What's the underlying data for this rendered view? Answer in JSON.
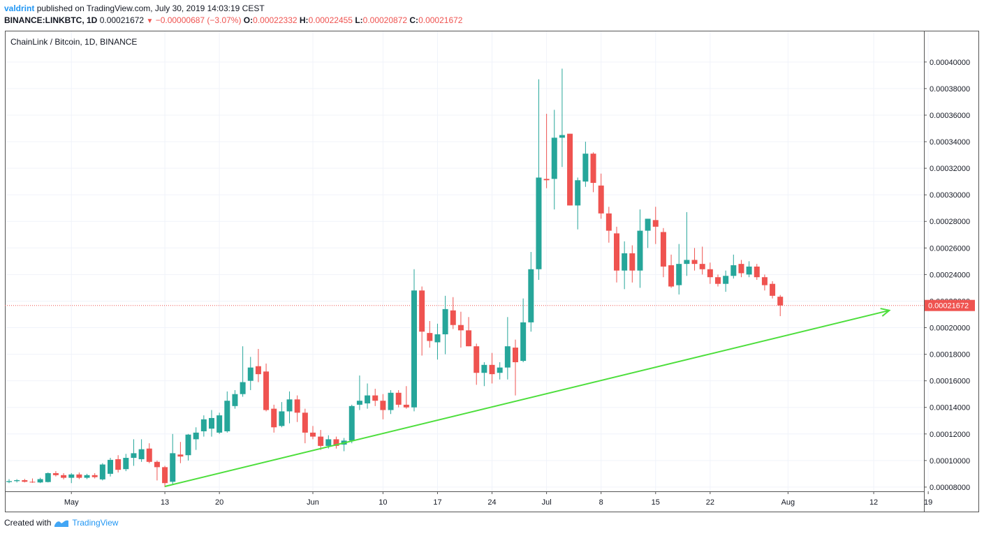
{
  "header": {
    "author": "valdrint",
    "published_text": "published on TradingView.com, July 30, 2019 14:03:19 CEST",
    "symbol": "BINANCE:LINKBTC, 1D",
    "last": "0.00021672",
    "change": "−0.00000687 (−3.07%)",
    "o_label": "O:",
    "o_value": "0.00022332",
    "h_label": "H:",
    "h_value": "0.00022455",
    "l_label": "L:",
    "l_value": "0.00020872",
    "c_label": "C:",
    "c_value": "0.00021672"
  },
  "legend": "ChainLink / Bitcoin, 1D, BINANCE",
  "footer": {
    "created_with": "Created with",
    "brand": "TradingView",
    "icon": "tradingview-logo-icon"
  },
  "colors": {
    "up": "#26a69a",
    "down": "#ef5350",
    "trendline": "#4cde3b",
    "grid": "#f0f3fa",
    "price_line": "#ef5350"
  },
  "chart_data": {
    "type": "candlestick",
    "interval": "1D",
    "y_axis": {
      "position": "right",
      "min": 7.05e-05,
      "max": 0.000412,
      "ticks": [
        "0.00008000",
        "0.00010000",
        "0.00012000",
        "0.00014000",
        "0.00016000",
        "0.00018000",
        "0.00020000",
        "0.00022000",
        "0.00024000",
        "0.00026000",
        "0.00028000",
        "0.00030000",
        "0.00032000",
        "0.00034000",
        "0.00036000",
        "0.00038000",
        "0.00040000"
      ]
    },
    "x_axis": {
      "start": "2019-04-23",
      "end": "2019-08-18",
      "ticks": [
        {
          "date": "2019-05-01",
          "label": "May"
        },
        {
          "date": "2019-05-13",
          "label": "13"
        },
        {
          "date": "2019-05-20",
          "label": "20"
        },
        {
          "date": "2019-06-01",
          "label": "Jun"
        },
        {
          "date": "2019-06-10",
          "label": "10"
        },
        {
          "date": "2019-06-17",
          "label": "17"
        },
        {
          "date": "2019-06-24",
          "label": "24"
        },
        {
          "date": "2019-07-01",
          "label": "Jul"
        },
        {
          "date": "2019-07-08",
          "label": "8"
        },
        {
          "date": "2019-07-15",
          "label": "15"
        },
        {
          "date": "2019-07-22",
          "label": "22"
        },
        {
          "date": "2019-08-01",
          "label": "Aug"
        },
        {
          "date": "2019-08-12",
          "label": "12"
        },
        {
          "date": "2019-08-19",
          "label": "19"
        }
      ]
    },
    "last_price": {
      "value": 0.00021672,
      "label": "0.00021672"
    },
    "trendline": {
      "start": {
        "date": "2019-05-13",
        "value": 8.05e-05
      },
      "end": {
        "date": "2019-08-14",
        "value": 0.000213
      }
    },
    "candles": [
      {
        "date": "2019-04-23",
        "o": 8.38e-05,
        "h": 8.6e-05,
        "l": 8.3e-05,
        "c": 8.45e-05
      },
      {
        "date": "2019-04-24",
        "o": 8.45e-05,
        "h": 8.6e-05,
        "l": 8.35e-05,
        "c": 8.52e-05
      },
      {
        "date": "2019-04-25",
        "o": 8.52e-05,
        "h": 8.62e-05,
        "l": 8.35e-05,
        "c": 8.4e-05
      },
      {
        "date": "2019-04-26",
        "o": 8.4e-05,
        "h": 8.65e-05,
        "l": 8.32e-05,
        "c": 8.35e-05
      },
      {
        "date": "2019-04-27",
        "o": 8.35e-05,
        "h": 8.7e-05,
        "l": 8.3e-05,
        "c": 8.6e-05
      },
      {
        "date": "2019-04-28",
        "o": 8.38e-05,
        "h": 9.1e-05,
        "l": 8.35e-05,
        "c": 9.05e-05
      },
      {
        "date": "2019-04-29",
        "o": 9.05e-05,
        "h": 9.2e-05,
        "l": 8.8e-05,
        "c": 8.9e-05
      },
      {
        "date": "2019-04-30",
        "o": 8.9e-05,
        "h": 9.05e-05,
        "l": 8.58e-05,
        "c": 8.7e-05
      },
      {
        "date": "2019-05-01",
        "o": 8.7e-05,
        "h": 9.05e-05,
        "l": 8.3e-05,
        "c": 8.95e-05
      },
      {
        "date": "2019-05-02",
        "o": 8.95e-05,
        "h": 9.1e-05,
        "l": 8.6e-05,
        "c": 8.7e-05
      },
      {
        "date": "2019-05-03",
        "o": 8.7e-05,
        "h": 9e-05,
        "l": 8.6e-05,
        "c": 8.9e-05
      },
      {
        "date": "2019-05-04",
        "o": 8.9e-05,
        "h": 9.05e-05,
        "l": 8.65e-05,
        "c": 8.75e-05
      },
      {
        "date": "2019-05-05",
        "o": 8.58e-05,
        "h": 9.8e-05,
        "l": 8.5e-05,
        "c": 9.7e-05
      },
      {
        "date": "2019-05-06",
        "o": 9e-05,
        "h": 0.000102,
        "l": 8.8e-05,
        "c": 0.0001005
      },
      {
        "date": "2019-05-07",
        "o": 0.000101,
        "h": 0.000104,
        "l": 9.1e-05,
        "c": 9.3e-05
      },
      {
        "date": "2019-05-08",
        "o": 9.35e-05,
        "h": 0.000105,
        "l": 9.2e-05,
        "c": 0.000102
      },
      {
        "date": "2019-05-09",
        "o": 0.000102,
        "h": 0.000116,
        "l": 9.6e-05,
        "c": 0.0001055
      },
      {
        "date": "2019-05-10",
        "o": 0.000101,
        "h": 0.000116,
        "l": 9.9e-05,
        "c": 0.0001085
      },
      {
        "date": "2019-05-11",
        "o": 0.000109,
        "h": 0.000113,
        "l": 9.8e-05,
        "c": 9.9e-05
      },
      {
        "date": "2019-05-12",
        "o": 9.9e-05,
        "h": 0.0001,
        "l": 8.5e-05,
        "c": 9.5e-05
      },
      {
        "date": "2019-05-13",
        "o": 9.5e-05,
        "h": 9.6e-05,
        "l": 8e-05,
        "c": 8.3e-05
      },
      {
        "date": "2019-05-14",
        "o": 8.4e-05,
        "h": 0.00012,
        "l": 8.2e-05,
        "c": 0.0001055
      },
      {
        "date": "2019-05-15",
        "o": 0.0001045,
        "h": 0.000114,
        "l": 9.8e-05,
        "c": 0.000103
      },
      {
        "date": "2019-05-16",
        "o": 0.000104,
        "h": 0.00012,
        "l": 0.0001,
        "c": 0.0001195
      },
      {
        "date": "2019-05-17",
        "o": 0.000116,
        "h": 0.000125,
        "l": 0.000108,
        "c": 0.000121
      },
      {
        "date": "2019-05-18",
        "o": 0.000122,
        "h": 0.000134,
        "l": 0.000118,
        "c": 0.000131
      },
      {
        "date": "2019-05-19",
        "o": 0.000124,
        "h": 0.000138,
        "l": 0.000118,
        "c": 0.000132
      },
      {
        "date": "2019-05-20",
        "o": 0.000121,
        "h": 0.000136,
        "l": 0.00012,
        "c": 0.000134
      },
      {
        "date": "2019-05-21",
        "o": 0.000122,
        "h": 0.000152,
        "l": 0.000121,
        "c": 0.000145
      },
      {
        "date": "2019-05-22",
        "o": 0.000141,
        "h": 0.000153,
        "l": 0.000139,
        "c": 0.00015
      },
      {
        "date": "2019-05-23",
        "o": 0.00015,
        "h": 0.000186,
        "l": 0.000148,
        "c": 0.000159
      },
      {
        "date": "2019-05-24",
        "o": 0.00016,
        "h": 0.000178,
        "l": 0.000153,
        "c": 0.00017
      },
      {
        "date": "2019-05-25",
        "o": 0.000171,
        "h": 0.000184,
        "l": 0.000159,
        "c": 0.000165
      },
      {
        "date": "2019-05-26",
        "o": 0.000167,
        "h": 0.000173,
        "l": 0.000137,
        "c": 0.000138
      },
      {
        "date": "2019-05-27",
        "o": 0.000139,
        "h": 0.000142,
        "l": 0.000121,
        "c": 0.000125
      },
      {
        "date": "2019-05-28",
        "o": 0.000126,
        "h": 0.000144,
        "l": 0.000125,
        "c": 0.000137
      },
      {
        "date": "2019-05-29",
        "o": 0.000137,
        "h": 0.000152,
        "l": 0.000128,
        "c": 0.000146
      },
      {
        "date": "2019-05-30",
        "o": 0.000146,
        "h": 0.000149,
        "l": 0.000129,
        "c": 0.000136
      },
      {
        "date": "2019-05-31",
        "o": 0.000136,
        "h": 0.000139,
        "l": 0.000113,
        "c": 0.000121
      },
      {
        "date": "2019-06-01",
        "o": 0.000121,
        "h": 0.000126,
        "l": 0.000116,
        "c": 0.000118
      },
      {
        "date": "2019-06-02",
        "o": 0.000118,
        "h": 0.000123,
        "l": 0.000108,
        "c": 0.000111
      },
      {
        "date": "2019-06-03",
        "o": 0.000111,
        "h": 0.000119,
        "l": 0.000109,
        "c": 0.000116
      },
      {
        "date": "2019-06-04",
        "o": 0.000116,
        "h": 0.000118,
        "l": 0.000109,
        "c": 0.000111
      },
      {
        "date": "2019-06-05",
        "o": 0.000112,
        "h": 0.000117,
        "l": 0.000107,
        "c": 0.000115
      },
      {
        "date": "2019-06-06",
        "o": 0.000115,
        "h": 0.000142,
        "l": 0.000113,
        "c": 0.000141
      },
      {
        "date": "2019-06-07",
        "o": 0.000142,
        "h": 0.000164,
        "l": 0.000138,
        "c": 0.000145
      },
      {
        "date": "2019-06-08",
        "o": 0.000143,
        "h": 0.000158,
        "l": 0.000139,
        "c": 0.000149
      },
      {
        "date": "2019-06-09",
        "o": 0.000149,
        "h": 0.000154,
        "l": 0.000141,
        "c": 0.000145
      },
      {
        "date": "2019-06-10",
        "o": 0.000145,
        "h": 0.00015,
        "l": 0.000131,
        "c": 0.000138
      },
      {
        "date": "2019-06-11",
        "o": 0.000138,
        "h": 0.000153,
        "l": 0.000135,
        "c": 0.000151
      },
      {
        "date": "2019-06-12",
        "o": 0.000151,
        "h": 0.000153,
        "l": 0.00014,
        "c": 0.000142
      },
      {
        "date": "2019-06-13",
        "o": 0.000142,
        "h": 0.000156,
        "l": 0.000139,
        "c": 0.00014
      },
      {
        "date": "2019-06-14",
        "o": 0.00014,
        "h": 0.000244,
        "l": 0.000137,
        "c": 0.000228
      },
      {
        "date": "2019-06-15",
        "o": 0.000228,
        "h": 0.000231,
        "l": 0.000179,
        "c": 0.000197
      },
      {
        "date": "2019-06-16",
        "o": 0.000196,
        "h": 0.000205,
        "l": 0.000185,
        "c": 0.00019
      },
      {
        "date": "2019-06-17",
        "o": 0.000189,
        "h": 0.000203,
        "l": 0.000176,
        "c": 0.000195
      },
      {
        "date": "2019-06-18",
        "o": 0.000195,
        "h": 0.000224,
        "l": 0.00018,
        "c": 0.000214
      },
      {
        "date": "2019-06-19",
        "o": 0.000213,
        "h": 0.000223,
        "l": 0.000199,
        "c": 0.000202
      },
      {
        "date": "2019-06-20",
        "o": 0.000202,
        "h": 0.000212,
        "l": 0.000185,
        "c": 0.000198
      },
      {
        "date": "2019-06-21",
        "o": 0.000198,
        "h": 0.000208,
        "l": 0.000186,
        "c": 0.000186
      },
      {
        "date": "2019-06-22",
        "o": 0.000186,
        "h": 0.000188,
        "l": 0.000157,
        "c": 0.000166
      },
      {
        "date": "2019-06-23",
        "o": 0.000166,
        "h": 0.000174,
        "l": 0.000156,
        "c": 0.000172
      },
      {
        "date": "2019-06-24",
        "o": 0.000172,
        "h": 0.000181,
        "l": 0.000158,
        "c": 0.000165
      },
      {
        "date": "2019-06-25",
        "o": 0.000166,
        "h": 0.000174,
        "l": 0.000161,
        "c": 0.00017
      },
      {
        "date": "2019-06-26",
        "o": 0.00017,
        "h": 0.000208,
        "l": 0.000161,
        "c": 0.000186
      },
      {
        "date": "2019-06-27",
        "o": 0.000185,
        "h": 0.000191,
        "l": 0.000149,
        "c": 0.000174
      },
      {
        "date": "2019-06-28",
        "o": 0.000175,
        "h": 0.000222,
        "l": 0.000174,
        "c": 0.000204
      },
      {
        "date": "2019-06-29",
        "o": 0.000204,
        "h": 0.000257,
        "l": 0.000197,
        "c": 0.000244
      },
      {
        "date": "2019-06-30",
        "o": 0.000244,
        "h": 0.000387,
        "l": 0.000236,
        "c": 0.000313
      },
      {
        "date": "2019-07-01",
        "o": 0.000312,
        "h": 0.000361,
        "l": 0.000305,
        "c": 0.000311
      },
      {
        "date": "2019-07-02",
        "o": 0.000312,
        "h": 0.000364,
        "l": 0.000289,
        "c": 0.000343
      },
      {
        "date": "2019-07-03",
        "o": 0.000343,
        "h": 0.000395,
        "l": 0.000321,
        "c": 0.000345
      },
      {
        "date": "2019-07-04",
        "o": 0.000346,
        "h": 0.000346,
        "l": 0.000292,
        "c": 0.000292
      },
      {
        "date": "2019-07-05",
        "o": 0.000292,
        "h": 0.000313,
        "l": 0.000274,
        "c": 0.000311
      },
      {
        "date": "2019-07-06",
        "o": 0.00031,
        "h": 0.00034,
        "l": 0.000306,
        "c": 0.000331
      },
      {
        "date": "2019-07-07",
        "o": 0.000331,
        "h": 0.000332,
        "l": 0.000302,
        "c": 0.000309
      },
      {
        "date": "2019-07-08",
        "o": 0.000307,
        "h": 0.000316,
        "l": 0.000282,
        "c": 0.000286
      },
      {
        "date": "2019-07-09",
        "o": 0.000286,
        "h": 0.000291,
        "l": 0.000264,
        "c": 0.000273
      },
      {
        "date": "2019-07-10",
        "o": 0.000271,
        "h": 0.000276,
        "l": 0.000234,
        "c": 0.000243
      },
      {
        "date": "2019-07-11",
        "o": 0.000243,
        "h": 0.000265,
        "l": 0.000229,
        "c": 0.000256
      },
      {
        "date": "2019-07-12",
        "o": 0.000256,
        "h": 0.000262,
        "l": 0.000234,
        "c": 0.000243
      },
      {
        "date": "2019-07-13",
        "o": 0.000243,
        "h": 0.000289,
        "l": 0.00023,
        "c": 0.000273
      },
      {
        "date": "2019-07-14",
        "o": 0.000273,
        "h": 0.000282,
        "l": 0.00026,
        "c": 0.000282
      },
      {
        "date": "2019-07-15",
        "o": 0.000281,
        "h": 0.000291,
        "l": 0.000263,
        "c": 0.000276
      },
      {
        "date": "2019-07-16",
        "o": 0.000272,
        "h": 0.000275,
        "l": 0.000238,
        "c": 0.000246
      },
      {
        "date": "2019-07-17",
        "o": 0.000247,
        "h": 0.000255,
        "l": 0.00023,
        "c": 0.000231
      },
      {
        "date": "2019-07-18",
        "o": 0.000232,
        "h": 0.000263,
        "l": 0.000225,
        "c": 0.000248
      },
      {
        "date": "2019-07-19",
        "o": 0.000248,
        "h": 0.000287,
        "l": 0.000239,
        "c": 0.000251
      },
      {
        "date": "2019-07-20",
        "o": 0.000251,
        "h": 0.00026,
        "l": 0.000243,
        "c": 0.000248
      },
      {
        "date": "2019-07-21",
        "o": 0.000248,
        "h": 0.000261,
        "l": 0.00024,
        "c": 0.000244
      },
      {
        "date": "2019-07-22",
        "o": 0.000244,
        "h": 0.000249,
        "l": 0.000233,
        "c": 0.000238
      },
      {
        "date": "2019-07-23",
        "o": 0.000238,
        "h": 0.00024,
        "l": 0.000231,
        "c": 0.000233
      },
      {
        "date": "2019-07-24",
        "o": 0.000233,
        "h": 0.000243,
        "l": 0.000227,
        "c": 0.000239
      },
      {
        "date": "2019-07-25",
        "o": 0.000239,
        "h": 0.000255,
        "l": 0.000237,
        "c": 0.000247
      },
      {
        "date": "2019-07-26",
        "o": 0.000248,
        "h": 0.000251,
        "l": 0.000238,
        "c": 0.000241
      },
      {
        "date": "2019-07-27",
        "o": 0.00024,
        "h": 0.00025,
        "l": 0.000238,
        "c": 0.000246
      },
      {
        "date": "2019-07-28",
        "o": 0.000246,
        "h": 0.000248,
        "l": 0.000236,
        "c": 0.000238
      },
      {
        "date": "2019-07-29",
        "o": 0.000238,
        "h": 0.00024,
        "l": 0.000228,
        "c": 0.000232
      },
      {
        "date": "2019-07-30",
        "o": 0.000233,
        "h": 0.000235,
        "l": 0.000222,
        "c": 0.000224
      },
      {
        "date": "2019-07-31",
        "o": 0.0002233,
        "h": 0.0002246,
        "l": 0.0002087,
        "c": 0.0002167
      }
    ]
  }
}
